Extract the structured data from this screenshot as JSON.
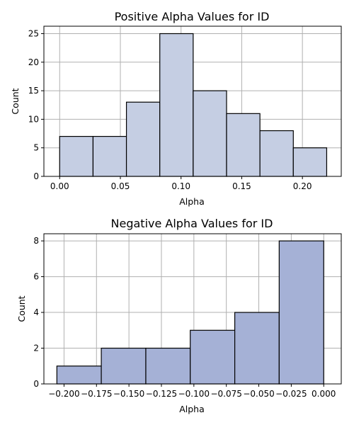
{
  "chart_data": [
    {
      "type": "histogram",
      "title": "Positive Alpha Values for ID",
      "xlabel": "Alpha",
      "ylabel": "Count",
      "xlim": [
        -0.013,
        0.232
      ],
      "ylim": [
        0,
        26.3
      ],
      "xticks": [
        0.0,
        0.05,
        0.1,
        0.15,
        0.2
      ],
      "xtick_labels": [
        "0.00",
        "0.05",
        "0.10",
        "0.15",
        "0.20"
      ],
      "yticks": [
        0,
        5,
        10,
        15,
        20,
        25
      ],
      "ytick_labels": [
        "0",
        "5",
        "10",
        "15",
        "20",
        "25"
      ],
      "grid": true,
      "color": "#c5cee3",
      "bins": [
        {
          "x0": 0.0,
          "x1": 0.0275,
          "count": 7
        },
        {
          "x0": 0.0275,
          "x1": 0.055,
          "count": 7
        },
        {
          "x0": 0.055,
          "x1": 0.0825,
          "count": 13
        },
        {
          "x0": 0.0825,
          "x1": 0.11,
          "count": 25
        },
        {
          "x0": 0.11,
          "x1": 0.1375,
          "count": 15
        },
        {
          "x0": 0.1375,
          "x1": 0.165,
          "count": 11
        },
        {
          "x0": 0.165,
          "x1": 0.1925,
          "count": 8
        },
        {
          "x0": 0.1925,
          "x1": 0.22,
          "count": 5
        }
      ]
    },
    {
      "type": "histogram",
      "title": "Negative Alpha Values for ID",
      "xlabel": "Alpha",
      "ylabel": "Count",
      "xlim": [
        -0.2155,
        0.0135
      ],
      "ylim": [
        0,
        8.4
      ],
      "xticks": [
        -0.2,
        -0.175,
        -0.15,
        -0.125,
        -0.1,
        -0.075,
        -0.05,
        -0.025,
        0.0
      ],
      "xtick_labels": [
        "−0.200",
        "−0.175",
        "−0.150",
        "−0.125",
        "−0.100",
        "−0.075",
        "−0.050",
        "−0.025",
        "0.000"
      ],
      "yticks": [
        0,
        2,
        4,
        6,
        8
      ],
      "ytick_labels": [
        "0",
        "2",
        "4",
        "6",
        "8"
      ],
      "grid": true,
      "color": "#a5b1d6",
      "bins": [
        {
          "x0": -0.2055,
          "x1": -0.1713,
          "count": 1
        },
        {
          "x0": -0.1713,
          "x1": -0.137,
          "count": 2
        },
        {
          "x0": -0.137,
          "x1": -0.1028,
          "count": 2
        },
        {
          "x0": -0.1028,
          "x1": -0.0685,
          "count": 3
        },
        {
          "x0": -0.0685,
          "x1": -0.0343,
          "count": 4
        },
        {
          "x0": -0.0343,
          "x1": 0.0,
          "count": 8
        }
      ]
    }
  ]
}
